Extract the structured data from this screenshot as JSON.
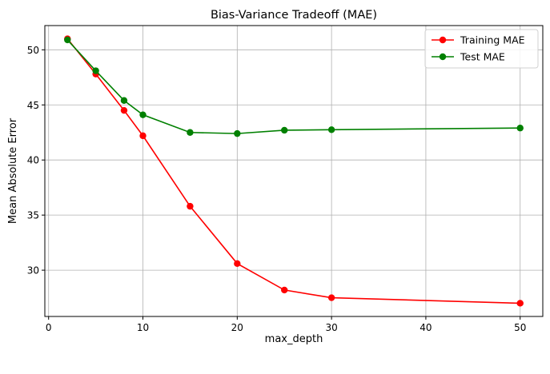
{
  "chart_data": {
    "type": "line",
    "title": "Bias-Variance Tradeoff (MAE)",
    "xlabel": "max_depth",
    "ylabel": "Mean Absolute Error",
    "x": [
      2,
      5,
      8,
      10,
      15,
      20,
      25,
      30,
      50
    ],
    "xlim": [
      -0.4,
      52.4
    ],
    "ylim": [
      25.8,
      52.2
    ],
    "xticks": [
      0,
      10,
      20,
      30,
      40,
      50
    ],
    "yticks": [
      30,
      35,
      40,
      45,
      50
    ],
    "grid": true,
    "legend_position": "top-right",
    "series": [
      {
        "name": "Training MAE",
        "color": "#ff0000",
        "marker": "circle",
        "values": [
          51.0,
          47.8,
          44.5,
          42.2,
          35.8,
          30.6,
          28.2,
          27.5,
          27.0
        ]
      },
      {
        "name": "Test MAE",
        "color": "#008000",
        "marker": "circle",
        "values": [
          50.9,
          48.1,
          45.4,
          44.1,
          42.5,
          42.4,
          42.7,
          42.75,
          42.9
        ]
      }
    ]
  }
}
